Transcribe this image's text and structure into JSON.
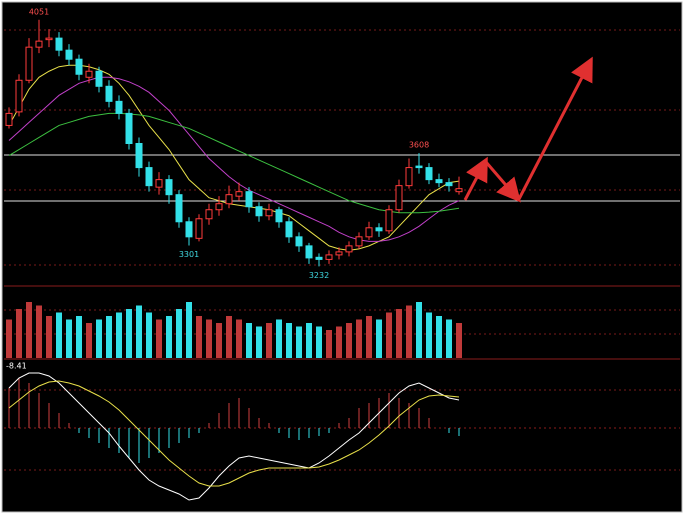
{
  "chart_data": {
    "type": "candlestick",
    "open": [
      3700,
      3745,
      3850,
      3960,
      3985,
      3990,
      3950,
      3920,
      3860,
      3880,
      3830,
      3780,
      3740,
      3640,
      3560,
      3495,
      3520,
      3470,
      3380,
      3325,
      3390,
      3420,
      3440,
      3465,
      3480,
      3430,
      3400,
      3420,
      3380,
      3330,
      3300,
      3262,
      3255,
      3270,
      3280,
      3300,
      3330,
      3360,
      3350,
      3420,
      3500,
      3565,
      3560,
      3520,
      3510,
      3480
    ],
    "high": [
      3760,
      3870,
      3990,
      4051,
      4020,
      4010,
      3970,
      3935,
      3905,
      3895,
      3850,
      3800,
      3755,
      3660,
      3580,
      3545,
      3535,
      3485,
      3395,
      3405,
      3440,
      3465,
      3500,
      3510,
      3495,
      3445,
      3440,
      3430,
      3395,
      3345,
      3310,
      3275,
      3285,
      3295,
      3315,
      3345,
      3380,
      3375,
      3435,
      3520,
      3590,
      3608,
      3575,
      3540,
      3525,
      3530
    ],
    "low": [
      3690,
      3730,
      3840,
      3940,
      3960,
      3930,
      3900,
      3850,
      3840,
      3810,
      3760,
      3720,
      3620,
      3530,
      3480,
      3470,
      3440,
      3360,
      3301,
      3315,
      3370,
      3400,
      3425,
      3450,
      3410,
      3380,
      3385,
      3360,
      3310,
      3280,
      3240,
      3232,
      3240,
      3255,
      3265,
      3290,
      3320,
      3330,
      3340,
      3410,
      3490,
      3540,
      3505,
      3495,
      3480,
      3470
    ],
    "close": [
      3740,
      3850,
      3960,
      3980,
      3990,
      3950,
      3920,
      3870,
      3880,
      3830,
      3780,
      3740,
      3640,
      3560,
      3500,
      3520,
      3470,
      3380,
      3330,
      3390,
      3420,
      3440,
      3470,
      3480,
      3430,
      3400,
      3420,
      3380,
      3330,
      3300,
      3260,
      3255,
      3270,
      3280,
      3300,
      3330,
      3360,
      3350,
      3420,
      3500,
      3560,
      3560,
      3520,
      3510,
      3500,
      3490
    ],
    "up_color": "#ff3b3b",
    "down_color": "#33e0e8",
    "ylim": [
      3170,
      4110
    ],
    "moving_averages": [
      {
        "color": "#e8e04a",
        "values": [
          3700,
          3760,
          3820,
          3860,
          3880,
          3895,
          3900,
          3900,
          3895,
          3885,
          3870,
          3840,
          3800,
          3750,
          3700,
          3660,
          3620,
          3570,
          3520,
          3490,
          3460,
          3450,
          3440,
          3435,
          3430,
          3425,
          3420,
          3410,
          3400,
          3375,
          3350,
          3325,
          3300,
          3290,
          3285,
          3290,
          3300,
          3315,
          3330,
          3365,
          3400,
          3435,
          3470,
          3490,
          3510,
          3515
        ]
      },
      {
        "color": "#c040c8",
        "values": [
          3650,
          3680,
          3710,
          3740,
          3770,
          3800,
          3820,
          3840,
          3850,
          3860,
          3860,
          3855,
          3845,
          3830,
          3810,
          3780,
          3750,
          3710,
          3670,
          3630,
          3590,
          3560,
          3530,
          3505,
          3485,
          3470,
          3455,
          3440,
          3425,
          3410,
          3395,
          3380,
          3365,
          3345,
          3330,
          3320,
          3315,
          3315,
          3320,
          3330,
          3345,
          3365,
          3390,
          3415,
          3435,
          3450
        ]
      },
      {
        "color": "#3cc040",
        "values": [
          3600,
          3620,
          3640,
          3660,
          3680,
          3700,
          3710,
          3720,
          3730,
          3735,
          3740,
          3740,
          3738,
          3735,
          3730,
          3720,
          3710,
          3700,
          3690,
          3675,
          3660,
          3645,
          3630,
          3615,
          3600,
          3585,
          3570,
          3555,
          3540,
          3525,
          3510,
          3495,
          3480,
          3465,
          3450,
          3440,
          3430,
          3420,
          3415,
          3410,
          3410,
          3410,
          3412,
          3415,
          3420,
          3425
        ]
      }
    ],
    "levels": [
      3602,
      3449
    ],
    "annotations": [
      "4051",
      "3608",
      "3301",
      "3232"
    ],
    "volume": {
      "ylim": [
        0,
        100
      ],
      "values": [
        55,
        70,
        80,
        75,
        60,
        65,
        55,
        60,
        50,
        55,
        60,
        65,
        70,
        75,
        65,
        55,
        60,
        70,
        80,
        60,
        55,
        50,
        60,
        55,
        50,
        45,
        50,
        55,
        50,
        45,
        50,
        45,
        40,
        45,
        50,
        55,
        60,
        55,
        65,
        70,
        75,
        80,
        65,
        60,
        55,
        50
      ]
    },
    "macd": {
      "label": "-8.41",
      "ylim": [
        -82,
        68
      ],
      "hist": [
        40,
        50,
        45,
        35,
        25,
        15,
        5,
        -5,
        -10,
        -15,
        -20,
        -25,
        -30,
        -35,
        -30,
        -25,
        -20,
        -15,
        -10,
        -5,
        5,
        15,
        25,
        30,
        20,
        10,
        5,
        -5,
        -10,
        -12,
        -10,
        -8,
        -5,
        5,
        10,
        20,
        25,
        30,
        35,
        30,
        25,
        20,
        10,
        0,
        -5,
        -8
      ],
      "dif": {
        "color": "#ffffff",
        "values": [
          40,
          50,
          55,
          55,
          52,
          45,
          35,
          25,
          15,
          5,
          -5,
          -18,
          -30,
          -42,
          -52,
          -58,
          -62,
          -66,
          -72,
          -70,
          -60,
          -48,
          -38,
          -30,
          -28,
          -30,
          -32,
          -34,
          -36,
          -38,
          -40,
          -35,
          -28,
          -20,
          -12,
          -5,
          5,
          15,
          25,
          35,
          42,
          45,
          40,
          35,
          30,
          28
        ]
      },
      "dea": {
        "color": "#e8e04a",
        "values": [
          20,
          28,
          36,
          42,
          46,
          47,
          45,
          42,
          37,
          32,
          26,
          18,
          8,
          -2,
          -12,
          -22,
          -32,
          -40,
          -48,
          -55,
          -58,
          -58,
          -55,
          -50,
          -45,
          -42,
          -40,
          -40,
          -40,
          -40,
          -40,
          -39,
          -36,
          -32,
          -27,
          -22,
          -15,
          -7,
          2,
          12,
          20,
          28,
          32,
          33,
          32,
          31
        ]
      }
    }
  }
}
